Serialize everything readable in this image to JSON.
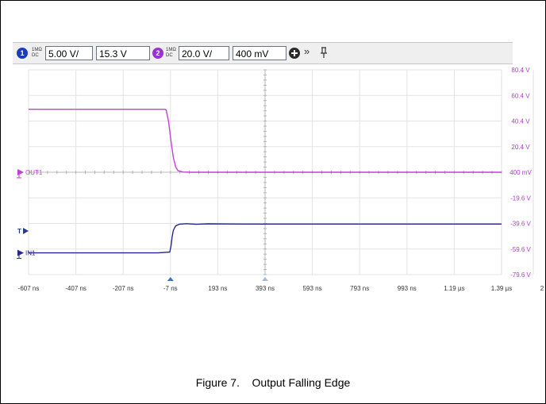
{
  "toolbar": {
    "ch1": {
      "number": "1",
      "coupling_top": "1MΩ",
      "coupling_bottom": "DC",
      "scale": "5.00 V/",
      "offset": "15.3 V",
      "color": "#1a3bbd"
    },
    "ch2": {
      "number": "2",
      "coupling_top": "1MΩ",
      "coupling_bottom": "DC",
      "scale": "20.0 V/",
      "offset": "400 mV",
      "color": "#9b30d9"
    },
    "icons": [
      "add-channel-icon",
      "expand-icon",
      "pin-icon"
    ]
  },
  "caption": {
    "figure": "Figure 7.",
    "title": "Output Falling Edge"
  },
  "chart_data": {
    "type": "line",
    "x_ticks": [
      "-607 ns",
      "-407 ns",
      "-207 ns",
      "-7 ns",
      "193 ns",
      "393 ns",
      "593 ns",
      "793 ns",
      "993 ns",
      "1.19 µs",
      "1.39 µs"
    ],
    "x_tick_values_ns": [
      -607,
      -407,
      -207,
      -7,
      193,
      393,
      593,
      793,
      993,
      1193,
      1393
    ],
    "x_edge_fragment": "2",
    "right_axis_labels": [
      "80.4 V",
      "60.4 V",
      "40.4 V",
      "20.4 V",
      "400 mV",
      "-19.6 V",
      "-39.6 V",
      "-59.6 V",
      "-79.6 V"
    ],
    "right_axis_values_v": [
      80.4,
      60.4,
      40.4,
      20.4,
      0.4,
      -19.6,
      -39.6,
      -59.6,
      -79.6
    ],
    "xlim_ns": [
      -607,
      1393
    ],
    "ylim_v": [
      -79.6,
      80.4
    ],
    "grid": true,
    "markers": {
      "ch2_ground": "OUT1",
      "ch1_ground": "IN1",
      "trigger": "T"
    },
    "series": [
      {
        "name": "OUT1",
        "color": "#c23fd6",
        "x": [
          -607,
          -30,
          -25,
          -15,
          -5,
          5,
          15,
          25,
          45,
          80,
          1393
        ],
        "y": [
          49.6,
          49.6,
          49.0,
          40.0,
          25.0,
          12.0,
          4.5,
          1.6,
          0.6,
          0.4,
          0.4
        ]
      },
      {
        "name": "IN1",
        "color": "#26288f",
        "x": [
          -607,
          -60,
          -10,
          -5,
          0,
          5,
          15,
          30,
          60,
          100,
          150,
          300,
          1393
        ],
        "y": [
          -62.6,
          -62.6,
          -62.0,
          -57.5,
          -50.0,
          -45.0,
          -41.5,
          -40.3,
          -39.8,
          -40.3,
          -39.9,
          -40.1,
          -40.1
        ]
      }
    ]
  }
}
